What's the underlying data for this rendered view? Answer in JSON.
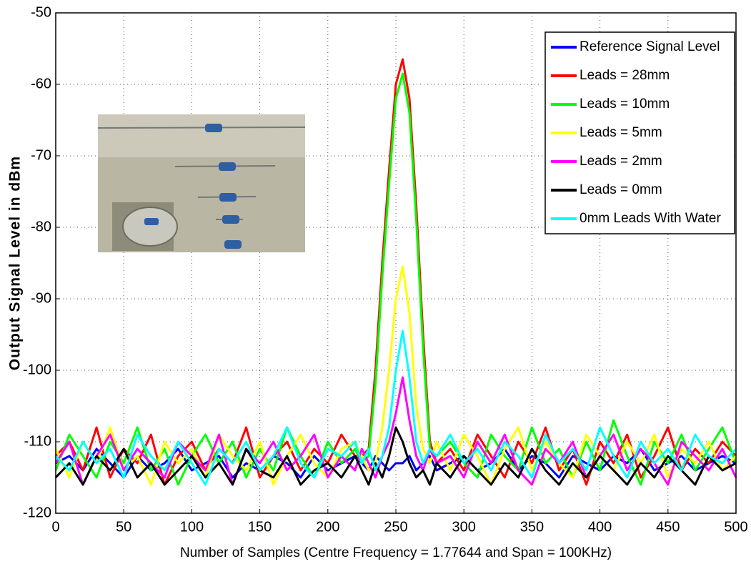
{
  "chart_data": {
    "type": "line",
    "xlabel": "Number of Samples (Centre Frequency = 1.77644 and Span = 100KHz)",
    "ylabel": "Output Signal Level in dBm",
    "x": [
      0,
      10,
      20,
      30,
      40,
      50,
      60,
      70,
      80,
      90,
      100,
      110,
      120,
      130,
      140,
      150,
      160,
      170,
      180,
      190,
      200,
      210,
      220,
      225,
      230,
      235,
      240,
      245,
      250,
      255,
      260,
      265,
      270,
      275,
      280,
      290,
      300,
      310,
      320,
      330,
      340,
      350,
      360,
      370,
      380,
      390,
      400,
      410,
      420,
      430,
      440,
      450,
      460,
      470,
      480,
      490,
      500
    ],
    "xlim": [
      0,
      500
    ],
    "xticks": [
      0,
      50,
      100,
      150,
      200,
      250,
      300,
      350,
      400,
      450,
      500
    ],
    "ylim": [
      -120,
      -50
    ],
    "yticks": [
      -120,
      -110,
      -100,
      -90,
      -80,
      -70,
      -60,
      -50
    ],
    "grid": true,
    "legend": "upper right",
    "series": [
      {
        "name": "Reference Signal Level",
        "color": "#0000ff",
        "values": [
          -113,
          -112,
          -114,
          -111,
          -113,
          -115,
          -112,
          -114,
          -113,
          -111,
          -114,
          -113,
          -112,
          -115,
          -113,
          -114,
          -112,
          -113,
          -115,
          -112,
          -114,
          -113,
          -112,
          -113,
          -114,
          -112,
          -113,
          -114,
          -113,
          -113,
          -112,
          -114,
          -113,
          -112,
          -114,
          -113,
          -112,
          -114,
          -113,
          -111,
          -114,
          -112,
          -113,
          -115,
          -112,
          -113,
          -114,
          -112,
          -113,
          -111,
          -114,
          -113,
          -112,
          -114,
          -113,
          -112,
          -113
        ]
      },
      {
        "name": "Leads = 28mm",
        "color": "#ff0000",
        "values": [
          -112,
          -110,
          -114,
          -108,
          -115,
          -111,
          -113,
          -109,
          -116,
          -112,
          -110,
          -114,
          -111,
          -113,
          -108,
          -115,
          -112,
          -110,
          -114,
          -111,
          -113,
          -109,
          -112,
          -112,
          -111,
          -100,
          -85,
          -72,
          -60,
          -56.5,
          -62,
          -77,
          -95,
          -110,
          -113,
          -111,
          -114,
          -109,
          -112,
          -115,
          -110,
          -113,
          -108,
          -114,
          -111,
          -116,
          -110,
          -113,
          -109,
          -115,
          -112,
          -108,
          -114,
          -111,
          -113,
          -110,
          -112
        ]
      },
      {
        "name": "Leads = 10mm",
        "color": "#00ff00",
        "values": [
          -114,
          -109,
          -112,
          -115,
          -110,
          -113,
          -108,
          -114,
          -111,
          -116,
          -112,
          -109,
          -113,
          -110,
          -115,
          -111,
          -114,
          -108,
          -112,
          -115,
          -110,
          -113,
          -111,
          -113,
          -112,
          -102,
          -87,
          -74,
          -62,
          -58.5,
          -64,
          -79,
          -97,
          -111,
          -112,
          -110,
          -113,
          -115,
          -109,
          -112,
          -114,
          -108,
          -113,
          -111,
          -115,
          -110,
          -114,
          -107,
          -112,
          -116,
          -110,
          -113,
          -109,
          -114,
          -111,
          -108,
          -113
        ]
      },
      {
        "name": "Leads = 5mm",
        "color": "#ffff00",
        "values": [
          -111,
          -115,
          -110,
          -113,
          -108,
          -114,
          -112,
          -116,
          -110,
          -113,
          -111,
          -115,
          -109,
          -112,
          -114,
          -110,
          -116,
          -112,
          -109,
          -113,
          -115,
          -111,
          -110,
          -112,
          -114,
          -113,
          -108,
          -100,
          -90,
          -85.5,
          -92,
          -105,
          -111,
          -113,
          -110,
          -114,
          -109,
          -112,
          -116,
          -111,
          -108,
          -114,
          -110,
          -113,
          -115,
          -109,
          -112,
          -114,
          -110,
          -113,
          -109,
          -115,
          -111,
          -113,
          -110,
          -114,
          -112
        ]
      },
      {
        "name": "Leads = 2mm",
        "color": "#ff00ff",
        "values": [
          -113,
          -110,
          -116,
          -112,
          -109,
          -114,
          -111,
          -113,
          -115,
          -110,
          -112,
          -114,
          -109,
          -116,
          -111,
          -113,
          -110,
          -114,
          -112,
          -109,
          -115,
          -112,
          -114,
          -111,
          -113,
          -115,
          -112,
          -110,
          -106,
          -101,
          -107,
          -112,
          -114,
          -111,
          -113,
          -112,
          -115,
          -110,
          -113,
          -109,
          -114,
          -116,
          -111,
          -113,
          -110,
          -115,
          -112,
          -109,
          -114,
          -111,
          -113,
          -116,
          -110,
          -112,
          -114,
          -111,
          -115
        ]
      },
      {
        "name": "Leads = 0mm",
        "color": "#000000",
        "values": [
          -115,
          -113,
          -116,
          -112,
          -114,
          -111,
          -115,
          -113,
          -116,
          -114,
          -112,
          -115,
          -113,
          -116,
          -111,
          -114,
          -115,
          -112,
          -116,
          -114,
          -113,
          -115,
          -112,
          -114,
          -116,
          -113,
          -115,
          -112,
          -108,
          -110,
          -113,
          -115,
          -114,
          -116,
          -113,
          -115,
          -112,
          -114,
          -116,
          -113,
          -115,
          -111,
          -114,
          -116,
          -113,
          -115,
          -112,
          -114,
          -116,
          -113,
          -115,
          -112,
          -114,
          -116,
          -112,
          -114,
          -113
        ]
      },
      {
        "name": "0mm Leads With Water",
        "color": "#00ffff",
        "values": [
          -112,
          -114,
          -110,
          -113,
          -111,
          -115,
          -109,
          -112,
          -114,
          -110,
          -113,
          -116,
          -111,
          -113,
          -110,
          -114,
          -112,
          -108,
          -113,
          -115,
          -111,
          -112,
          -110,
          -113,
          -111,
          -114,
          -112,
          -108,
          -100,
          -94.5,
          -101,
          -110,
          -113,
          -111,
          -112,
          -109,
          -113,
          -111,
          -114,
          -110,
          -112,
          -115,
          -109,
          -113,
          -111,
          -114,
          -108,
          -112,
          -115,
          -110,
          -113,
          -111,
          -114,
          -109,
          -112,
          -113,
          -111
        ]
      }
    ]
  }
}
